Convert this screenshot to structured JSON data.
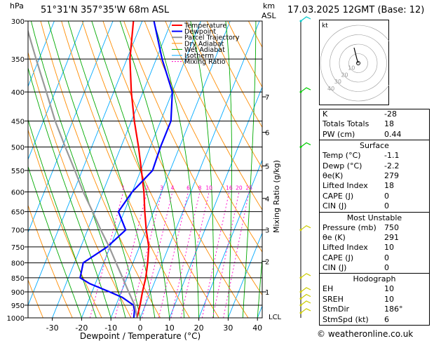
{
  "header": {
    "pressure_unit": "hPa",
    "location": "51°31'N  357°35'W  68m  ASL",
    "height_unit_1": "km",
    "height_unit_2": "ASL",
    "datetime": "17.03.2025  12GMT  (Base: 12)"
  },
  "chart_data": {
    "type": "line",
    "title": "",
    "xlabel": "Dewpoint / Temperature (°C)",
    "ylabel": "",
    "x_ticks": [
      -30,
      -20,
      -10,
      0,
      10,
      20,
      30,
      40
    ],
    "xlim": [
      -40,
      40
    ],
    "pressure_levels": [
      300,
      350,
      400,
      450,
      500,
      550,
      600,
      650,
      700,
      750,
      800,
      850,
      900,
      950,
      1000
    ],
    "ylim": [
      300,
      1000
    ],
    "y_scale": "log",
    "km_ticks": [
      {
        "label": "1",
        "p": 900
      },
      {
        "label": "2",
        "p": 795
      },
      {
        "label": "3",
        "p": 700
      },
      {
        "label": "4",
        "p": 616
      },
      {
        "label": "5",
        "p": 540
      },
      {
        "label": "6",
        "p": 471
      },
      {
        "label": "7",
        "p": 408
      }
    ],
    "lcl_label": "LCL",
    "lcl_pressure": 997,
    "mixing_ratio_axis_label": "Mixing Ratio (g/kg)",
    "mixing_ratio_labels": [
      "1",
      "2",
      "3",
      "4",
      "6",
      "8",
      "10",
      "16",
      "20",
      "25"
    ],
    "mixing_ratios": [
      1,
      2,
      3,
      4,
      6,
      8,
      10,
      16,
      20,
      25
    ],
    "legend": [
      "Temperature",
      "Dewpoint",
      "Parcel Trajectory",
      "Dry Adiabat",
      "Wet Adiabat",
      "Isotherm",
      "Mixing Ratio"
    ],
    "legend_position": "top-right",
    "series": [
      {
        "name": "Temperature",
        "color": "#ff0000",
        "points": [
          [
            1000,
            -1.1
          ],
          [
            950,
            -1.8
          ],
          [
            900,
            -2.8
          ],
          [
            850,
            -3.6
          ],
          [
            800,
            -5
          ],
          [
            750,
            -6.8
          ],
          [
            700,
            -10
          ],
          [
            650,
            -13
          ],
          [
            600,
            -16
          ],
          [
            550,
            -19.8
          ],
          [
            500,
            -24
          ],
          [
            450,
            -29
          ],
          [
            400,
            -34
          ],
          [
            350,
            -39
          ],
          [
            300,
            -43
          ]
        ]
      },
      {
        "name": "Dewpoint",
        "color": "#0000ff",
        "points": [
          [
            1000,
            -2.2
          ],
          [
            970,
            -3
          ],
          [
            950,
            -4
          ],
          [
            920,
            -9
          ],
          [
            900,
            -14
          ],
          [
            870,
            -22
          ],
          [
            850,
            -26
          ],
          [
            800,
            -27
          ],
          [
            750,
            -21
          ],
          [
            700,
            -17
          ],
          [
            650,
            -22
          ],
          [
            600,
            -20
          ],
          [
            550,
            -16
          ],
          [
            500,
            -16.5
          ],
          [
            450,
            -16.5
          ],
          [
            400,
            -20
          ],
          [
            350,
            -28
          ],
          [
            300,
            -36
          ]
        ]
      },
      {
        "name": "Parcel Trajectory",
        "color": "#999999",
        "points": [
          [
            1000,
            -1.1
          ],
          [
            950,
            -3.6
          ],
          [
            900,
            -7.5
          ],
          [
            850,
            -11.5
          ],
          [
            800,
            -15.8
          ],
          [
            750,
            -20.3
          ],
          [
            700,
            -25.5
          ],
          [
            650,
            -30.8
          ],
          [
            600,
            -36.7
          ],
          [
            550,
            -42.5
          ],
          [
            500,
            -49
          ],
          [
            450,
            -56
          ],
          [
            400,
            -63
          ],
          [
            350,
            -71
          ],
          [
            300,
            -80
          ]
        ]
      }
    ],
    "colors": {
      "dry_adiabat": "#ff8c00",
      "wet_adiabat": "#00aa00",
      "isotherm": "#00aaff",
      "mixing_ratio": "#ff00c8",
      "wind": "#00cccc"
    },
    "hodograph": {
      "label": "kt",
      "ring_labels": [
        "40",
        "30",
        "20",
        "10"
      ],
      "storm_motion_dir_deg": 186,
      "storm_motion_speed_kt": 6
    },
    "wind_barbs": [
      {
        "p": 300,
        "color": "#00cccc"
      },
      {
        "p": 400,
        "color": "#00cc00"
      },
      {
        "p": 500,
        "color": "#00cc00"
      },
      {
        "p": 700,
        "color": "#cccc00"
      },
      {
        "p": 850,
        "color": "#cccc00"
      },
      {
        "p": 900,
        "color": "#cccc00"
      },
      {
        "p": 925,
        "color": "#cccc00"
      },
      {
        "p": 950,
        "color": "#cccc00"
      },
      {
        "p": 980,
        "color": "#cccc00"
      }
    ]
  },
  "indices": [
    {
      "k": "K",
      "v": "-28"
    },
    {
      "k": "Totals Totals",
      "v": "18"
    },
    {
      "k": "PW (cm)",
      "v": "0.44"
    }
  ],
  "surface": {
    "title": "Surface",
    "rows": [
      {
        "k": "Temp (°C)",
        "v": "-1.1"
      },
      {
        "k": "Dewp (°C)",
        "v": "-2.2"
      },
      {
        "k": "θe(K)",
        "v": "279"
      },
      {
        "k": "Lifted Index",
        "v": "18"
      },
      {
        "k": "CAPE (J)",
        "v": "0"
      },
      {
        "k": "CIN (J)",
        "v": "0"
      }
    ]
  },
  "unstable": {
    "title": "Most Unstable",
    "rows": [
      {
        "k": "Pressure (mb)",
        "v": "750"
      },
      {
        "k": "θe (K)",
        "v": "291"
      },
      {
        "k": "Lifted Index",
        "v": "10"
      },
      {
        "k": "CAPE (J)",
        "v": "0"
      },
      {
        "k": "CIN (J)",
        "v": "0"
      }
    ]
  },
  "hodograph_table": {
    "title": "Hodograph",
    "rows": [
      {
        "k": "EH",
        "v": "10"
      },
      {
        "k": "SREH",
        "v": "10"
      },
      {
        "k": "StmDir",
        "v": "186°"
      },
      {
        "k": "StmSpd (kt)",
        "v": "6"
      }
    ]
  },
  "credit": "© weatheronline.co.uk"
}
